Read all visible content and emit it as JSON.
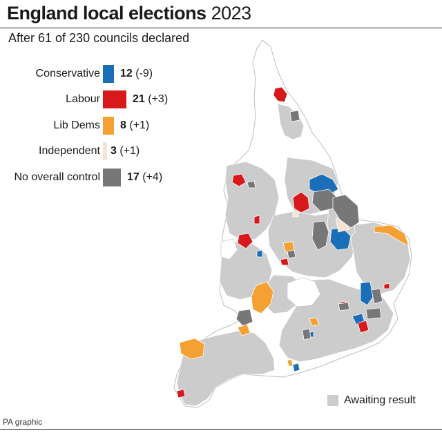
{
  "title": "England local elections",
  "title_year": "2023",
  "subtitle": "After 61 of 230 councils declared",
  "legend": [
    {
      "label": "Conservative",
      "count": "12",
      "change": "(-9)",
      "color": "#1a6fb8"
    },
    {
      "label": "Labour",
      "count": "21",
      "change": "(+3)",
      "color": "#d7191c"
    },
    {
      "label": "Lib Dems",
      "count": "8",
      "change": "(+1)",
      "color": "#f5a032"
    },
    {
      "label": "Independent",
      "count": "3",
      "change": "(+1)",
      "color": "#f7e3d3"
    },
    {
      "label": "No overall control",
      "count": "17",
      "change": "(+4)",
      "color": "#777777"
    }
  ],
  "awaiting_label": "Awaiting result",
  "awaiting_color": "#cccccc",
  "credit": "PA graphic"
}
